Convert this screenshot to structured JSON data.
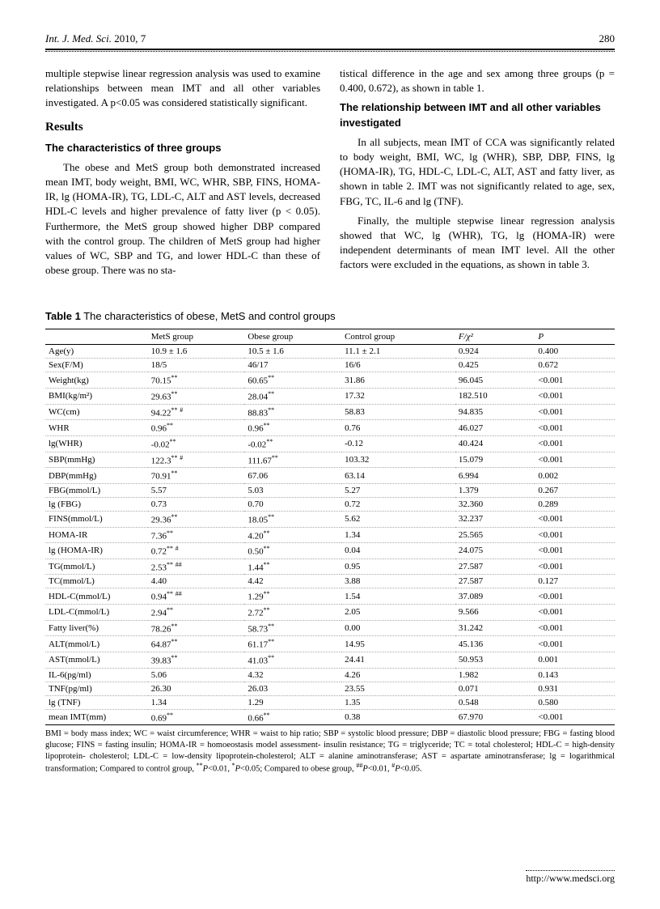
{
  "header": {
    "journal": "Int. J. Med. Sci.",
    "year_vol": "2010, 7",
    "page": "280"
  },
  "left_col": {
    "p1": "multiple stepwise linear regression analysis was used to examine relationships between mean IMT and all other variables investigated. A p<0.05 was considered statistically significant.",
    "results_h": "Results",
    "sub1": "The characteristics of three groups",
    "p2": "The obese and MetS group both demonstrated increased mean IMT, body weight, BMI, WC, WHR, SBP, FINS, HOMA-IR, lg (HOMA-IR), TG, LDL-C, ALT and AST levels, decreased HDL-C levels and higher prevalence of fatty liver (p < 0.05). Furthermore, the MetS group showed higher DBP compared with the control group. The children of MetS group had higher values of WC, SBP and TG, and lower HDL-C than these of obese group. There was no sta-"
  },
  "right_col": {
    "p1": "tistical difference in the age and sex among three groups (p = 0.400, 0.672), as shown in table 1.",
    "sub1": "The relationship between IMT and all other variables investigated",
    "p2": "In all subjects, mean IMT of CCA was significantly related to body weight, BMI, WC, lg (WHR), SBP, DBP, FINS, lg (HOMA-IR), TG, HDL-C, LDL-C, ALT, AST and fatty liver, as shown in table 2. IMT was not significantly related to age, sex, FBG, TC, IL-6 and lg (TNF).",
    "p3": "Finally, the multiple stepwise linear regression analysis showed that WC, lg (WHR), TG, lg (HOMA-IR) were independent determinants of mean IMT level. All the other factors were excluded in the equations, as shown in table 3."
  },
  "table": {
    "caption_bold": "Table 1",
    "caption_rest": " The characteristics of obese, MetS and control groups",
    "headers": [
      "",
      "MetS group",
      "Obese group",
      "Control group",
      "F/χ²",
      "P"
    ],
    "rows": [
      {
        "label": "Age(y)",
        "mets": "10.9 ± 1.6",
        "obese": "10.5 ± 1.6",
        "control": "11.1 ± 2.1",
        "f": "0.924",
        "p": "0.400"
      },
      {
        "label": "Sex(F/M)",
        "mets": "18/5",
        "obese": "46/17",
        "control": "16/6",
        "f": "0.425",
        "p": "0.672"
      },
      {
        "label": "Weight(kg)",
        "mets": "70.15**",
        "obese": "60.65**",
        "control": "31.86",
        "f": "96.045",
        "p": "<0.001"
      },
      {
        "label": "BMI(kg/m²)",
        "mets": "29.63**",
        "obese": "28.04**",
        "control": "17.32",
        "f": "182.510",
        "p": "<0.001"
      },
      {
        "label": "WC(cm)",
        "mets": "94.22** #",
        "obese": "88.83**",
        "control": "58.83",
        "f": "94.835",
        "p": "<0.001"
      },
      {
        "label": "WHR",
        "mets": "0.96**",
        "obese": "0.96**",
        "control": "0.76",
        "f": "46.027",
        "p": "<0.001"
      },
      {
        "label": "lg(WHR)",
        "mets": "-0.02**",
        "obese": "-0.02**",
        "control": "-0.12",
        "f": "40.424",
        "p": "<0.001"
      },
      {
        "label": "SBP(mmHg)",
        "mets": "122.3** #",
        "obese": "111.67**",
        "control": "103.32",
        "f": "15.079",
        "p": "<0.001"
      },
      {
        "label": "DBP(mmHg)",
        "mets": "70.91**",
        "obese": "67.06",
        "control": "63.14",
        "f": "6.994",
        "p": "0.002"
      },
      {
        "label": "FBG(mmol/L)",
        "mets": "5.57",
        "obese": "5.03",
        "control": "5.27",
        "f": "1.379",
        "p": "0.267"
      },
      {
        "label": "lg (FBG)",
        "mets": "0.73",
        "obese": "0.70",
        "control": "0.72",
        "f": "32.360",
        "p": "0.289"
      },
      {
        "label": "FINS(mmol/L)",
        "mets": "29.36**",
        "obese": "18.05**",
        "control": "5.62",
        "f": "32.237",
        "p": "<0.001"
      },
      {
        "label": "HOMA-IR",
        "mets": "7.36**",
        "obese": "4.20**",
        "control": "1.34",
        "f": "25.565",
        "p": "<0.001"
      },
      {
        "label": "lg (HOMA-IR)",
        "mets": "0.72** #",
        "obese": "0.50**",
        "control": "0.04",
        "f": "24.075",
        "p": "<0.001"
      },
      {
        "label": "TG(mmol/L)",
        "mets": "2.53** ##",
        "obese": "1.44**",
        "control": "0.95",
        "f": "27.587",
        "p": "<0.001"
      },
      {
        "label": "TC(mmol/L)",
        "mets": "4.40",
        "obese": "4.42",
        "control": "3.88",
        "f": "27.587",
        "p": "0.127"
      },
      {
        "label": "HDL-C(mmol/L)",
        "mets": "0.94** ##",
        "obese": "1.29**",
        "control": "1.54",
        "f": "37.089",
        "p": "<0.001"
      },
      {
        "label": "LDL-C(mmol/L)",
        "mets": "2.94**",
        "obese": "2.72**",
        "control": "2.05",
        "f": "9.566",
        "p": "<0.001"
      },
      {
        "label": "Fatty liver(%)",
        "mets": "78.26**",
        "obese": "58.73**",
        "control": "0.00",
        "f": "31.242",
        "p": "<0.001"
      },
      {
        "label": "ALT(mmol/L)",
        "mets": "64.87**",
        "obese": "61.17**",
        "control": "14.95",
        "f": "45.136",
        "p": "<0.001"
      },
      {
        "label": "AST(mmol/L)",
        "mets": "39.83**",
        "obese": "41.03**",
        "control": "24.41",
        "f": "50.953",
        "p": "0.001"
      },
      {
        "label": "IL-6(pg/ml)",
        "mets": "5.06",
        "obese": "4.32",
        "control": "4.26",
        "f": "1.982",
        "p": "0.143"
      },
      {
        "label": "TNF(pg/ml)",
        "mets": "26.30",
        "obese": "26.03",
        "control": "23.55",
        "f": "0.071",
        "p": "0.931"
      },
      {
        "label": "lg (TNF)",
        "mets": "1.34",
        "obese": "1.29",
        "control": "1.35",
        "f": "0.548",
        "p": "0.580"
      },
      {
        "label": "mean IMT(mm)",
        "mets": "0.69**",
        "obese": "0.66**",
        "control": "0.38",
        "f": "67.970",
        "p": "<0.001"
      }
    ],
    "footnote": "BMI = body mass index; WC = waist circumference; WHR = waist to hip ratio; SBP = systolic blood pressure; DBP = diastolic blood pressure; FBG = fasting blood glucose; FINS = fasting insulin; HOMA-IR = homoeostasis model assessment- insulin resistance; TG = triglyceride; TC = total cholesterol; HDL-C = high-density lipoprotein- cholesterol; LDL-C = low-density lipoprotein-cholesterol; ALT = alanine aminotransferase; AST = aspartate aminotransferase; lg = logarithmical transformation; Compared to control group, **P<0.01, *P<0.05; Compared to obese group, ##P<0.01, #P<0.05."
  },
  "footer": {
    "url": "http://www.medsci.org"
  }
}
